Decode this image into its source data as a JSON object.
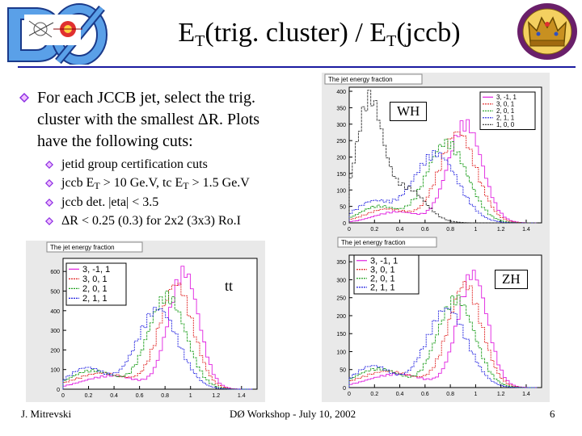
{
  "slide": {
    "title_main_1": "E",
    "title_sub_1": "T",
    "title_mid": "(trig. cluster) / E",
    "title_sub_2": "T",
    "title_end": "(jccb)",
    "bullet_main": {
      "line1": "For each JCCB jet, select the trig.",
      "line2": "cluster with the smallest ΔR. Plots",
      "line3": "have the following cuts:"
    },
    "sub_bullets": {
      "b1": "jetid group certification cuts",
      "b2_a": "jccb E",
      "b2_sub1": "T",
      "b2_b": " > 10 Ge.V, tc E",
      "b2_sub2": "T",
      "b2_c": " > 1.5 Ge.V",
      "b3": "jccb det. |eta| < 3.5",
      "b4": "ΔR < 0.25 (0.3) for 2x2 (3x3) Ro.I"
    },
    "footer": {
      "author": "J. Mitrevski",
      "event": "DØ Workshop - July 10, 2002",
      "page": "6"
    },
    "colors": {
      "bullet_diamond": "#8a2be2",
      "rule": "#1a1aa0",
      "plot_bg": "#e9e9e9"
    }
  },
  "plots": {
    "wh": {
      "header": "The jet energy fraction",
      "label": "WH",
      "y_ticks": [
        "400",
        "350",
        "300",
        "250",
        "200",
        "150",
        "100",
        "50",
        "0"
      ],
      "x_ticks": [
        "0",
        "0.2",
        "0.4",
        "0.6",
        "0.8",
        "1",
        "1.2",
        "1.4"
      ],
      "legend": [
        "3, -1, 1",
        "3, 0, 1",
        "2, 0, 1",
        "2, 1, 1",
        "1, 0, 0"
      ]
    },
    "tt": {
      "header": "The jet energy fraction",
      "label": "tt",
      "y_ticks": [
        "600",
        "500",
        "400",
        "300",
        "200",
        "100",
        "0"
      ],
      "x_ticks": [
        "0",
        "0.2",
        "0.4",
        "0.6",
        "0.8",
        "1",
        "1.2",
        "1.4"
      ],
      "legend": [
        "3, -1, 1",
        "3, 0, 1",
        "2, 0, 1",
        "2, 1, 1"
      ]
    },
    "zh": {
      "header": "The jet energy fraction",
      "label": "ZH",
      "y_ticks": [
        "350",
        "300",
        "250",
        "200",
        "150",
        "100",
        "50",
        "0"
      ],
      "x_ticks": [
        "0",
        "0.2",
        "0.4",
        "0.6",
        "0.8",
        "1",
        "1.2",
        "1.4"
      ],
      "legend": [
        "3, -1, 1",
        "3, 0, 1",
        "2, 0, 1",
        "2, 1, 1"
      ]
    },
    "series_colors": [
      "#e020e0",
      "#e02020",
      "#20a020",
      "#2020e0",
      "#303030"
    ]
  }
}
